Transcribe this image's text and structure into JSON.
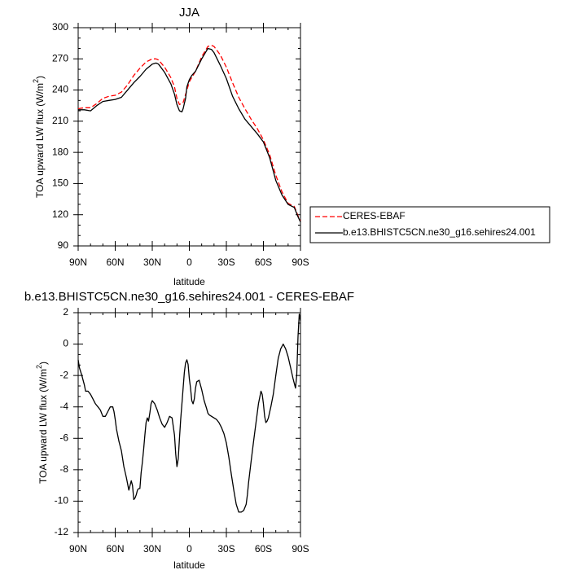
{
  "chart_data": [
    {
      "type": "line",
      "title": "JJA",
      "xlabel": "latitude",
      "ylabel": "TOA upward LW flux (W/m",
      "ylabel_sup": "2",
      "ylabel_tail": ")",
      "xlim": [
        90,
        -90
      ],
      "ylim": [
        90,
        300
      ],
      "xticks": [
        90,
        60,
        30,
        0,
        -30,
        -60,
        -90
      ],
      "xtick_labels": [
        "90N",
        "60N",
        "30N",
        "0",
        "30S",
        "60S",
        "90S"
      ],
      "yticks": [
        90,
        120,
        150,
        180,
        210,
        240,
        270,
        300
      ],
      "ytick_labels": [
        "90",
        "120",
        "150",
        "180",
        "210",
        "240",
        "270",
        "300"
      ],
      "legend": {
        "placement": "outside-right"
      },
      "series": [
        {
          "name": "CERES-EBAF",
          "style": "dashed",
          "color": "#ff0000",
          "x": [
            90,
            85,
            80,
            75,
            70,
            65,
            60,
            55,
            50,
            45,
            40,
            35,
            30,
            27,
            25,
            20,
            15,
            12,
            10,
            8,
            5,
            2,
            0,
            -2,
            -5,
            -10,
            -15,
            -18,
            -20,
            -25,
            -30,
            -35,
            -40,
            -45,
            -50,
            -55,
            -60,
            -65,
            -70,
            -75,
            -80,
            -85,
            -88,
            -90
          ],
          "y": [
            222,
            223,
            223,
            227,
            232,
            234,
            235,
            238,
            245,
            254,
            261,
            267,
            270,
            270,
            269,
            262,
            252,
            243,
            232,
            226,
            228,
            240,
            248,
            252,
            258,
            272,
            282,
            283,
            282,
            274,
            262,
            247,
            233,
            222,
            212,
            203,
            192,
            178,
            158,
            142,
            131,
            128,
            119,
            114
          ]
        },
        {
          "name": "b.e13.BHISTC5CN.ne30_g16.sehires24.001",
          "style": "solid",
          "color": "#000000",
          "x": [
            90,
            85,
            80,
            75,
            70,
            65,
            60,
            55,
            50,
            45,
            40,
            35,
            30,
            27,
            25,
            20,
            15,
            12,
            10,
            8,
            6,
            5,
            3,
            2,
            0,
            -2,
            -5,
            -10,
            -15,
            -18,
            -20,
            -25,
            -30,
            -35,
            -40,
            -45,
            -50,
            -55,
            -60,
            -65,
            -70,
            -75,
            -80,
            -85,
            -88,
            -90
          ],
          "y": [
            221,
            221,
            220,
            225,
            229,
            230,
            231,
            233,
            240,
            247,
            253,
            260,
            265,
            266,
            265,
            257,
            246,
            236,
            226,
            220,
            219,
            222,
            232,
            243,
            250,
            254,
            258,
            270,
            280,
            279,
            276,
            264,
            251,
            234,
            222,
            212,
            205,
            198,
            190,
            175,
            153,
            139,
            130,
            127,
            118,
            113
          ]
        }
      ]
    },
    {
      "type": "line",
      "title": "b.e13.BHISTC5CN.ne30_g16.sehires24.001 - CERES-EBAF",
      "xlabel": "latitude",
      "ylabel": "TOA upward LW flux (W/m",
      "ylabel_sup": "2",
      "ylabel_tail": ")",
      "xlim": [
        90,
        -90
      ],
      "ylim": [
        -12,
        2
      ],
      "xticks": [
        90,
        60,
        30,
        0,
        -30,
        -60,
        -90
      ],
      "xtick_labels": [
        "90N",
        "60N",
        "30N",
        "0",
        "30S",
        "60S",
        "90S"
      ],
      "yticks": [
        2,
        0,
        -2,
        -4,
        -6,
        -8,
        -10,
        -12
      ],
      "ytick_labels": [
        "2",
        "0",
        "-2",
        "-4",
        "-6",
        "-8",
        "-10",
        "-12"
      ],
      "series": [
        {
          "color": "#000000",
          "style": "solid",
          "x": [
            90,
            89,
            87,
            85,
            84,
            82,
            80,
            78,
            76,
            74,
            72,
            70,
            68,
            66,
            64,
            62,
            61,
            60,
            59,
            57,
            55,
            53,
            51,
            49,
            47,
            46,
            45,
            44,
            43,
            42,
            41,
            40,
            39,
            38,
            37,
            36,
            35,
            34,
            33,
            32,
            31,
            30,
            28,
            26,
            24,
            22,
            20,
            18,
            16,
            14,
            12,
            11,
            10,
            9,
            8,
            7,
            6,
            5,
            4,
            3,
            2,
            1,
            0,
            -1,
            -2,
            -3,
            -4,
            -5,
            -6,
            -8,
            -10,
            -12,
            -14,
            -15,
            -16,
            -18,
            -20,
            -22,
            -24,
            -26,
            -28,
            -30,
            -32,
            -34,
            -36,
            -38,
            -40,
            -42,
            -44,
            -45,
            -46,
            -47,
            -48,
            -50,
            -52,
            -54,
            -56,
            -58,
            -59,
            -60,
            -61,
            -62,
            -63,
            -64,
            -66,
            -68,
            -70,
            -72,
            -74,
            -76,
            -78,
            -80,
            -82,
            -84,
            -85,
            -86,
            -87,
            -88,
            -89,
            -90
          ],
          "y": [
            -1.0,
            -1.5,
            -2.0,
            -2.6,
            -3.0,
            -3.0,
            -3.2,
            -3.5,
            -3.8,
            -4.0,
            -4.2,
            -4.6,
            -4.6,
            -4.3,
            -4.0,
            -4.0,
            -4.3,
            -4.8,
            -5.4,
            -6.2,
            -6.8,
            -7.8,
            -8.5,
            -9.3,
            -8.7,
            -9.0,
            -9.9,
            -9.8,
            -9.6,
            -9.3,
            -9.2,
            -9.2,
            -8.2,
            -7.5,
            -6.7,
            -5.8,
            -5.0,
            -4.7,
            -4.9,
            -4.4,
            -3.8,
            -3.6,
            -3.8,
            -4.2,
            -4.7,
            -5.1,
            -5.3,
            -5.0,
            -4.6,
            -4.7,
            -5.8,
            -7.0,
            -7.8,
            -7.3,
            -6.0,
            -4.8,
            -3.8,
            -2.8,
            -1.8,
            -1.2,
            -1.0,
            -1.3,
            -2.2,
            -2.8,
            -3.6,
            -3.8,
            -3.5,
            -2.8,
            -2.4,
            -2.3,
            -2.9,
            -3.6,
            -4.1,
            -4.4,
            -4.5,
            -4.6,
            -4.7,
            -4.8,
            -5.0,
            -5.3,
            -5.7,
            -6.3,
            -7.2,
            -8.3,
            -9.3,
            -10.2,
            -10.7,
            -10.7,
            -10.6,
            -10.4,
            -10.2,
            -9.6,
            -8.8,
            -7.5,
            -6.2,
            -5.0,
            -3.8,
            -3.0,
            -3.2,
            -3.8,
            -4.6,
            -5.0,
            -4.9,
            -4.7,
            -4.0,
            -3.2,
            -2.0,
            -0.9,
            -0.3,
            0.0,
            -0.3,
            -0.8,
            -1.5,
            -2.2,
            -2.5,
            -2.8,
            -2.0,
            0.5,
            1.9,
            1.5
          ]
        }
      ]
    }
  ]
}
